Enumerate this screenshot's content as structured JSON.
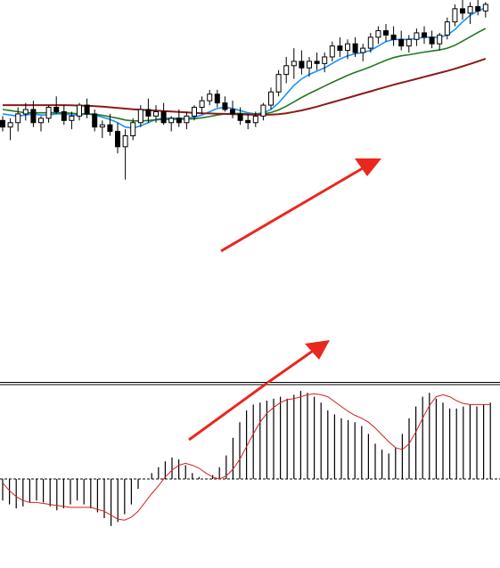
{
  "chart_data": [
    {
      "type": "candlestick",
      "title": "",
      "xlabel": "",
      "ylabel": "",
      "ylim": [
        0,
        100
      ],
      "grid": false,
      "legend": "none",
      "candles": [
        [
          45,
          47,
          40,
          42
        ],
        [
          42,
          46,
          36,
          44
        ],
        [
          44,
          51,
          40,
          48
        ],
        [
          48,
          53,
          45,
          50
        ],
        [
          50,
          54,
          42,
          44
        ],
        [
          44,
          47,
          40,
          46
        ],
        [
          46,
          52,
          44,
          51
        ],
        [
          51,
          56,
          48,
          49
        ],
        [
          49,
          52,
          43,
          45
        ],
        [
          45,
          49,
          41,
          47
        ],
        [
          47,
          53,
          45,
          52
        ],
        [
          52,
          55,
          46,
          48
        ],
        [
          48,
          50,
          40,
          42
        ],
        [
          42,
          45,
          37,
          43
        ],
        [
          43,
          48,
          38,
          40
        ],
        [
          40,
          44,
          30,
          33
        ],
        [
          33,
          41,
          18,
          38
        ],
        [
          38,
          46,
          36,
          44
        ],
        [
          44,
          52,
          42,
          50
        ],
        [
          50,
          55,
          44,
          47
        ],
        [
          47,
          52,
          44,
          49
        ],
        [
          49,
          53,
          43,
          44
        ],
        [
          44,
          47,
          40,
          46
        ],
        [
          46,
          50,
          42,
          44
        ],
        [
          44,
          49,
          41,
          47
        ],
        [
          47,
          52,
          45,
          51
        ],
        [
          51,
          56,
          48,
          54
        ],
        [
          54,
          59,
          52,
          57
        ],
        [
          57,
          59,
          51,
          53
        ],
        [
          53,
          56,
          49,
          50
        ],
        [
          50,
          54,
          46,
          48
        ],
        [
          48,
          51,
          43,
          45
        ],
        [
          45,
          48,
          41,
          44
        ],
        [
          44,
          49,
          42,
          47
        ],
        [
          47,
          53,
          45,
          52
        ],
        [
          52,
          60,
          50,
          58
        ],
        [
          58,
          68,
          56,
          66
        ],
        [
          66,
          74,
          62,
          70
        ],
        [
          70,
          78,
          64,
          72
        ],
        [
          72,
          77,
          66,
          69
        ],
        [
          69,
          74,
          65,
          72
        ],
        [
          72,
          76,
          68,
          71
        ],
        [
          71,
          76,
          67,
          74
        ],
        [
          74,
          81,
          72,
          79
        ],
        [
          79,
          83,
          74,
          77
        ],
        [
          77,
          82,
          73,
          80
        ],
        [
          80,
          83,
          74,
          76
        ],
        [
          76,
          80,
          72,
          78
        ],
        [
          78,
          85,
          76,
          83
        ],
        [
          83,
          88,
          80,
          86
        ],
        [
          86,
          89,
          81,
          84
        ],
        [
          84,
          88,
          79,
          82
        ],
        [
          82,
          86,
          77,
          79
        ],
        [
          79,
          84,
          76,
          82
        ],
        [
          82,
          87,
          79,
          85
        ],
        [
          85,
          88,
          80,
          83
        ],
        [
          83,
          86,
          78,
          80
        ],
        [
          80,
          85,
          77,
          84
        ],
        [
          84,
          92,
          82,
          90
        ],
        [
          90,
          98,
          88,
          96
        ],
        [
          96,
          100,
          91,
          94
        ],
        [
          94,
          99,
          89,
          97
        ],
        [
          97,
          100,
          93,
          95
        ],
        [
          95,
          99,
          92,
          98
        ]
      ],
      "moving_averages": [
        {
          "color": "#1e90ff",
          "values": [
            48,
            47.5,
            47,
            47.5,
            48,
            47.5,
            47.5,
            48,
            48,
            47.5,
            47.5,
            48,
            47.5,
            46.5,
            45.5,
            44,
            42,
            41.5,
            42.5,
            44,
            45.5,
            46,
            46,
            46,
            46,
            46.5,
            47.5,
            49,
            50.5,
            51,
            50.5,
            49.5,
            48.5,
            48,
            48.5,
            50,
            53,
            57,
            61,
            64,
            66,
            67.5,
            69,
            71,
            73,
            74.5,
            75.5,
            76,
            77,
            79,
            81,
            82,
            82,
            82,
            82.5,
            83,
            83,
            83,
            84,
            86.5,
            90,
            93,
            95,
            96.5
          ]
        },
        {
          "color": "#1f7a1f",
          "values": [
            50,
            49.5,
            49,
            48.5,
            48.5,
            48.5,
            48.5,
            48.5,
            48.5,
            48.3,
            48,
            48,
            47.8,
            47.3,
            46.7,
            46,
            45.2,
            44.8,
            44.8,
            45,
            45.3,
            45.5,
            45.6,
            45.6,
            45.6,
            45.8,
            46.2,
            46.8,
            47.5,
            48,
            48.2,
            48.2,
            48,
            47.9,
            48,
            48.6,
            49.8,
            51.5,
            53.5,
            55.5,
            57.3,
            59,
            60.7,
            62.4,
            64,
            65.6,
            67,
            68.2,
            69.5,
            71,
            72.5,
            73.7,
            74.5,
            75,
            75.6,
            76.2,
            76.7,
            77.2,
            78,
            79.3,
            81.2,
            83.2,
            85.2,
            87
          ]
        },
        {
          "color": "#8b1a1a",
          "values": [
            52,
            52,
            52,
            52,
            52,
            52,
            52,
            52,
            52,
            51.9,
            51.8,
            51.7,
            51.5,
            51.3,
            51,
            50.7,
            50.4,
            50.1,
            49.9,
            49.7,
            49.5,
            49.3,
            49.1,
            48.9,
            48.7,
            48.5,
            48.3,
            48.2,
            48.1,
            48,
            47.9,
            47.8,
            47.7,
            47.6,
            47.6,
            47.7,
            47.9,
            48.3,
            48.9,
            49.6,
            50.4,
            51.3,
            52.3,
            53.3,
            54.3,
            55.3,
            56.3,
            57.3,
            58.3,
            59.3,
            60.3,
            61.3,
            62.2,
            63.1,
            64,
            64.9,
            65.8,
            66.7,
            67.6,
            68.6,
            69.7,
            70.8,
            72,
            73.2
          ]
        }
      ]
    },
    {
      "type": "bar",
      "title": "",
      "xlabel": "",
      "ylabel": "",
      "ylim": [
        -60,
        100
      ],
      "grid": false,
      "legend": "none",
      "zero_line": "dashed",
      "values": [
        -22,
        -26,
        -30,
        -28,
        -24,
        -22,
        -24,
        -28,
        -32,
        -30,
        -26,
        -22,
        -26,
        -30,
        -34,
        -40,
        -48,
        -44,
        -36,
        -26,
        -10,
        0,
        6,
        12,
        18,
        22,
        20,
        14,
        6,
        2,
        0,
        4,
        12,
        24,
        42,
        58,
        70,
        76,
        78,
        80,
        82,
        84,
        82,
        86,
        90,
        88,
        84,
        78,
        70,
        66,
        62,
        60,
        58,
        54,
        46,
        36,
        30,
        26,
        32,
        46,
        62,
        74,
        84,
        88,
        82,
        78,
        72,
        72,
        74,
        76,
        74,
        76,
        78
      ],
      "signal_color": "#d42020",
      "signal": [
        -4,
        -12,
        -18,
        -22,
        -24,
        -24,
        -25,
        -26,
        -27,
        -28,
        -29,
        -29,
        -29,
        -29,
        -31,
        -33,
        -37,
        -41,
        -42,
        -39,
        -33,
        -24,
        -15,
        -7,
        2,
        9,
        14,
        16,
        14,
        11,
        6,
        2,
        0,
        3,
        10,
        20,
        33,
        46,
        58,
        67,
        73,
        78,
        81,
        82,
        84,
        86,
        87,
        86,
        84,
        79,
        74,
        69,
        65,
        62,
        58,
        52,
        45,
        38,
        32,
        30,
        36,
        48,
        62,
        75,
        84,
        86,
        84,
        80,
        77,
        76,
        76,
        76,
        76
      ]
    }
  ],
  "annotations": {
    "arrow_color": "#e8281e",
    "separator_color": "#000000"
  }
}
